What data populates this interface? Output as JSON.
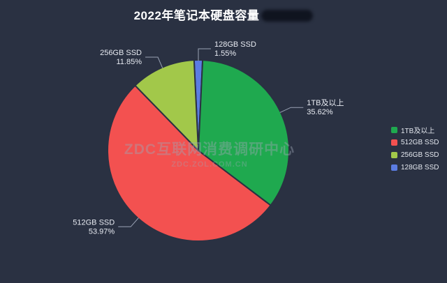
{
  "title": {
    "text": "2022年笔记本硬盘容量",
    "redacted_suffix": true
  },
  "watermark": {
    "line1": "ZDC互联网消费调研中心",
    "line2": "ZDC.ZOL.COM.CN"
  },
  "colors": {
    "background": "#2a3142",
    "title_text": "#ffffff",
    "label_text": "#e8ebf2",
    "leader_line": "#99a2b4"
  },
  "chart_data": {
    "type": "pie",
    "title": "2022年笔记本硬盘容量",
    "legend_position": "right",
    "start_orientation": "smallest slice (128GB SSD) centered at 12 o'clock, clockwise",
    "slices": [
      {
        "label": "128GB SSD",
        "value": 1.55,
        "display": "1.55%",
        "color": "#5b7ce2"
      },
      {
        "label": "1TB及以上",
        "value": 35.62,
        "display": "35.62%",
        "color": "#1fa94f"
      },
      {
        "label": "512GB SSD",
        "value": 53.97,
        "display": "53.97%",
        "color": "#f35150"
      },
      {
        "label": "256GB SSD",
        "value": 11.85,
        "display": "11.85%",
        "color": "#a2c84a"
      }
    ],
    "legend": [
      {
        "label": "1TB及以上",
        "color": "#1fa94f"
      },
      {
        "label": "512GB SSD",
        "color": "#f35150"
      },
      {
        "label": "256GB SSD",
        "color": "#a2c84a"
      },
      {
        "label": "128GB SSD",
        "color": "#5b7ce2"
      }
    ]
  }
}
